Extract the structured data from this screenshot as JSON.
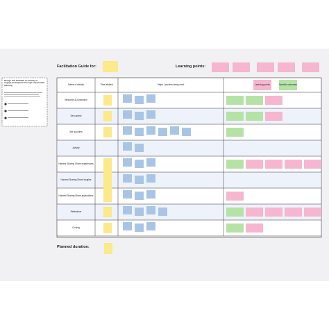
{
  "header": {
    "title": "Facilitation Guide for:",
    "learning_points_label": "Learning points:"
  },
  "left_note": {
    "title": "Design and facilitate an activity to engage participants through experiential learning"
  },
  "table": {
    "columns": [
      "Name of activity",
      "Time allotted",
      "Steps / process being used"
    ],
    "learning_header": [
      "Learning points",
      "Specific outcomes"
    ],
    "rows": [
      "Welcome & connection",
      "Set context",
      "Set up points",
      "Activity",
      "Harvest Sharing Share experiences",
      "Harvest Sharing Share insights",
      "Harvest Sharing Share applications",
      "Reflections",
      "Closing"
    ]
  },
  "footer": {
    "planned_duration": "Planned duration:"
  }
}
